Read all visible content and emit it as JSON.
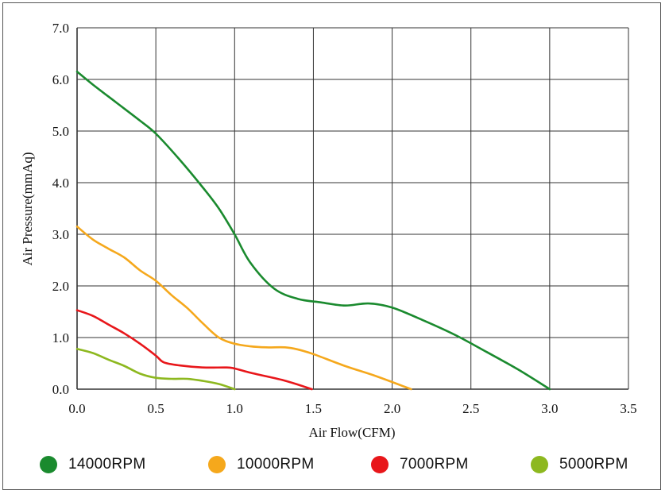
{
  "chart_data": {
    "type": "line",
    "title": "",
    "xlabel": "Air Flow(CFM)",
    "ylabel": "Air Pressure(mmAq)",
    "xlim": [
      0,
      3.5
    ],
    "ylim": [
      0,
      7
    ],
    "x_ticks": [
      "0.0",
      "0.5",
      "1.0",
      "1.5",
      "2.0",
      "2.5",
      "3.0",
      "3.5"
    ],
    "y_ticks": [
      "0.0",
      "1.0",
      "2.0",
      "3.0",
      "4.0",
      "5.0",
      "6.0",
      "7.0"
    ],
    "grid": true,
    "legend_position": "bottom",
    "series": [
      {
        "name": "14000RPM",
        "color": "#1a8a2e",
        "points": [
          [
            0.0,
            6.15
          ],
          [
            0.1,
            5.9
          ],
          [
            0.25,
            5.55
          ],
          [
            0.4,
            5.2
          ],
          [
            0.5,
            4.95
          ],
          [
            0.65,
            4.45
          ],
          [
            0.8,
            3.9
          ],
          [
            0.9,
            3.5
          ],
          [
            1.0,
            3.0
          ],
          [
            1.1,
            2.45
          ],
          [
            1.25,
            1.95
          ],
          [
            1.4,
            1.75
          ],
          [
            1.55,
            1.68
          ],
          [
            1.7,
            1.62
          ],
          [
            1.85,
            1.66
          ],
          [
            2.0,
            1.58
          ],
          [
            2.2,
            1.33
          ],
          [
            2.4,
            1.05
          ],
          [
            2.6,
            0.72
          ],
          [
            2.8,
            0.38
          ],
          [
            3.0,
            0.0
          ]
        ]
      },
      {
        "name": "10000RPM",
        "color": "#f5a81c",
        "points": [
          [
            0.0,
            3.15
          ],
          [
            0.1,
            2.9
          ],
          [
            0.2,
            2.72
          ],
          [
            0.3,
            2.55
          ],
          [
            0.4,
            2.3
          ],
          [
            0.5,
            2.1
          ],
          [
            0.6,
            1.82
          ],
          [
            0.7,
            1.57
          ],
          [
            0.8,
            1.27
          ],
          [
            0.9,
            1.0
          ],
          [
            1.0,
            0.88
          ],
          [
            1.1,
            0.83
          ],
          [
            1.2,
            0.81
          ],
          [
            1.32,
            0.81
          ],
          [
            1.4,
            0.77
          ],
          [
            1.5,
            0.68
          ],
          [
            1.7,
            0.45
          ],
          [
            1.9,
            0.25
          ],
          [
            2.12,
            0.0
          ]
        ]
      },
      {
        "name": "7000RPM",
        "color": "#e8161a",
        "points": [
          [
            0.0,
            1.53
          ],
          [
            0.1,
            1.42
          ],
          [
            0.2,
            1.25
          ],
          [
            0.3,
            1.08
          ],
          [
            0.4,
            0.88
          ],
          [
            0.5,
            0.65
          ],
          [
            0.55,
            0.52
          ],
          [
            0.65,
            0.46
          ],
          [
            0.8,
            0.42
          ],
          [
            0.95,
            0.42
          ],
          [
            1.0,
            0.4
          ],
          [
            1.1,
            0.32
          ],
          [
            1.2,
            0.25
          ],
          [
            1.3,
            0.18
          ],
          [
            1.4,
            0.09
          ],
          [
            1.49,
            0.0
          ]
        ]
      },
      {
        "name": "5000RPM",
        "color": "#8db81f",
        "points": [
          [
            0.0,
            0.78
          ],
          [
            0.1,
            0.7
          ],
          [
            0.2,
            0.57
          ],
          [
            0.3,
            0.45
          ],
          [
            0.4,
            0.3
          ],
          [
            0.5,
            0.22
          ],
          [
            0.6,
            0.2
          ],
          [
            0.7,
            0.2
          ],
          [
            0.8,
            0.16
          ],
          [
            0.9,
            0.1
          ],
          [
            1.0,
            0.0
          ]
        ]
      }
    ]
  }
}
